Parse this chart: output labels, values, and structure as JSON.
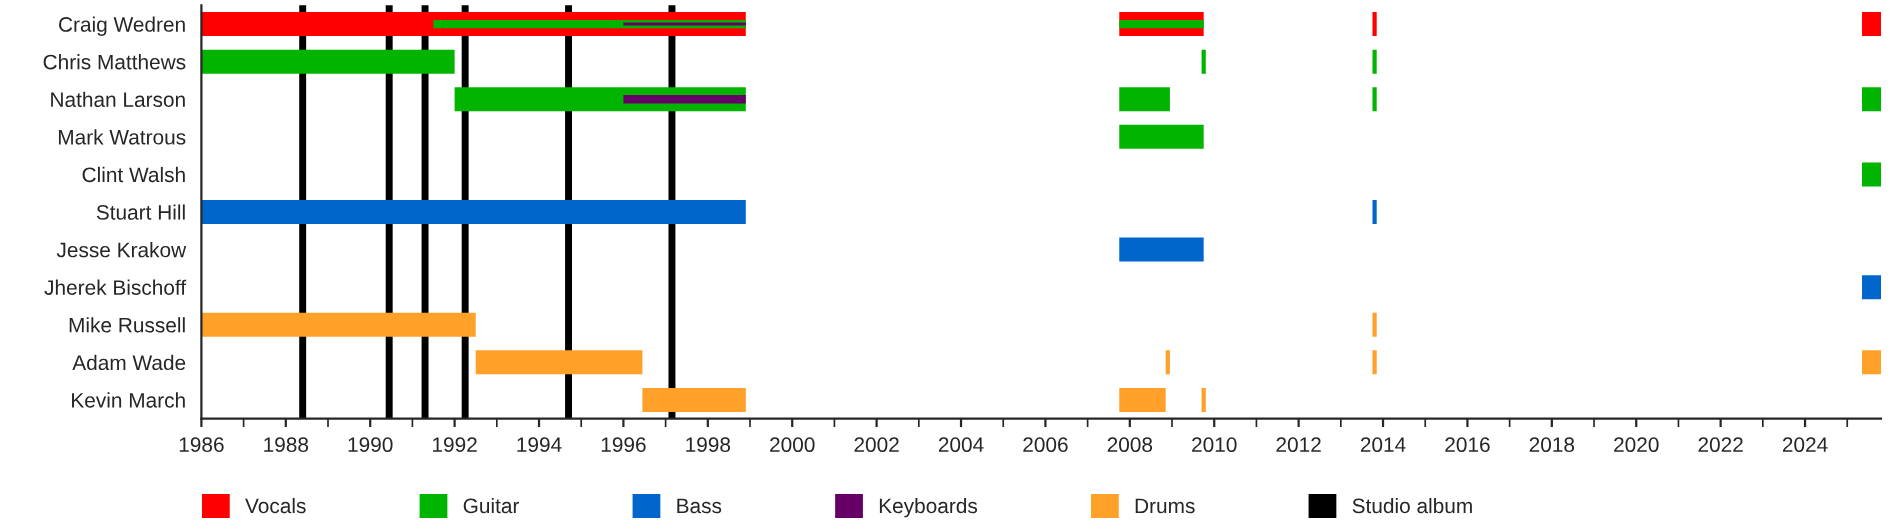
{
  "chart_data": {
    "type": "bar",
    "orientation": "horizontal",
    "legend": "bottom",
    "grid": false,
    "categories": [
      "Craig Wedren",
      "Chris Matthews",
      "Nathan Larson",
      "Mark Watrous",
      "Clint Walsh",
      "Stuart Hill",
      "Jesse Krakow",
      "Jherek Bischoff",
      "Mike Russell",
      "Adam Wade",
      "Kevin March"
    ],
    "xlim": [
      1986,
      2025.8
    ],
    "xticks": [
      1986,
      1988,
      1990,
      1992,
      1994,
      1996,
      1998,
      2000,
      2002,
      2004,
      2006,
      2008,
      2010,
      2012,
      2014,
      2016,
      2018,
      2020,
      2022,
      2024
    ],
    "series": [
      {
        "name": "Vocals",
        "color": "#ff0000",
        "base": [
          1986,
          null,
          null,
          null,
          null,
          null,
          null,
          null,
          null,
          null,
          null
        ],
        "values": [
          12.9,
          null,
          null,
          null,
          null,
          null,
          null,
          null,
          null,
          null,
          null
        ]
      },
      {
        "color": "#ff0000",
        "base": [
          2007.75,
          null,
          null,
          null,
          null,
          null,
          null,
          null,
          null,
          null,
          null
        ],
        "values": [
          2.0,
          null,
          null,
          null,
          null,
          null,
          null,
          null,
          null,
          null,
          null
        ]
      },
      {
        "color": "#ff0000",
        "base": [
          2013.75,
          null,
          null,
          null,
          null,
          null,
          null,
          null,
          null,
          null,
          null
        ],
        "values": [
          0.1,
          null,
          null,
          null,
          null,
          null,
          null,
          null,
          null,
          null,
          null
        ]
      },
      {
        "color": "#ff0000",
        "base": [
          2025.35,
          null,
          null,
          null,
          null,
          null,
          null,
          null,
          null,
          null,
          null
        ],
        "values": [
          0.45,
          null,
          null,
          null,
          null,
          null,
          null,
          null,
          null,
          null,
          null
        ]
      },
      {
        "name": "Guitar",
        "color": "#00b400",
        "base": [
          1991.5,
          1986,
          1992,
          null,
          null,
          null,
          null,
          null,
          null,
          null,
          null
        ],
        "values": [
          7.4,
          6.0,
          6.9,
          null,
          null,
          null,
          null,
          null,
          null,
          null,
          null
        ]
      },
      {
        "color": "#00b400",
        "base": [
          2007.75,
          null,
          2007.75,
          2007.75,
          null,
          null,
          null,
          null,
          null,
          null,
          null
        ],
        "values": [
          2.0,
          null,
          1.2,
          2.0,
          null,
          null,
          null,
          null,
          null,
          null,
          null
        ]
      },
      {
        "color": "#00b400",
        "base": [
          null,
          2009.7,
          null,
          null,
          null,
          null,
          null,
          null,
          null,
          null,
          null
        ],
        "values": [
          null,
          0.1,
          null,
          null,
          null,
          null,
          null,
          null,
          null,
          null,
          null
        ]
      },
      {
        "color": "#00b400",
        "base": [
          null,
          2013.75,
          2013.75,
          null,
          null,
          null,
          null,
          null,
          null,
          null,
          null
        ],
        "values": [
          null,
          0.1,
          0.1,
          null,
          null,
          null,
          null,
          null,
          null,
          null,
          null
        ]
      },
      {
        "color": "#00b400",
        "base": [
          null,
          null,
          2025.35,
          null,
          2025.35,
          null,
          null,
          null,
          null,
          null,
          null
        ],
        "values": [
          null,
          null,
          0.45,
          null,
          0.45,
          null,
          null,
          null,
          null,
          null,
          null
        ]
      },
      {
        "name": "Bass",
        "color": "#0066cc",
        "base": [
          null,
          null,
          null,
          null,
          null,
          1986,
          null,
          null,
          null,
          null,
          null
        ],
        "values": [
          null,
          null,
          null,
          null,
          null,
          12.9,
          null,
          null,
          null,
          null,
          null
        ]
      },
      {
        "color": "#0066cc",
        "base": [
          null,
          null,
          null,
          null,
          null,
          null,
          2007.75,
          null,
          null,
          null,
          null
        ],
        "values": [
          null,
          null,
          null,
          null,
          null,
          null,
          2.0,
          null,
          null,
          null,
          null
        ]
      },
      {
        "color": "#0066cc",
        "base": [
          null,
          null,
          null,
          null,
          null,
          2013.75,
          null,
          null,
          null,
          null,
          null
        ],
        "values": [
          null,
          null,
          null,
          null,
          null,
          0.1,
          null,
          null,
          null,
          null,
          null
        ]
      },
      {
        "color": "#0066cc",
        "base": [
          null,
          null,
          null,
          null,
          null,
          null,
          null,
          2025.35,
          null,
          null,
          null
        ],
        "values": [
          null,
          null,
          null,
          null,
          null,
          null,
          null,
          0.45,
          null,
          null,
          null
        ]
      },
      {
        "name": "Keyboards",
        "color": "#660066",
        "base": [
          1996,
          null,
          1996,
          null,
          null,
          null,
          null,
          null,
          null,
          null,
          null
        ],
        "values": [
          2.9,
          null,
          2.9,
          null,
          null,
          null,
          null,
          null,
          null,
          null,
          null
        ]
      },
      {
        "name": "Drums",
        "color": "#ffa028",
        "base": [
          null,
          null,
          null,
          null,
          null,
          null,
          null,
          null,
          1986,
          1992.5,
          1996.45
        ],
        "values": [
          null,
          null,
          null,
          null,
          null,
          null,
          null,
          null,
          6.5,
          3.95,
          2.45
        ]
      },
      {
        "color": "#ffa028",
        "base": [
          null,
          null,
          null,
          null,
          null,
          null,
          null,
          null,
          null,
          2008.85,
          2007.75
        ],
        "values": [
          null,
          null,
          null,
          null,
          null,
          null,
          null,
          null,
          null,
          0.1,
          1.1
        ]
      },
      {
        "color": "#ffa028",
        "base": [
          null,
          null,
          null,
          null,
          null,
          null,
          null,
          null,
          2013.75,
          2013.75,
          2009.7
        ],
        "values": [
          null,
          null,
          null,
          null,
          null,
          null,
          null,
          null,
          0.1,
          0.1,
          0.1
        ]
      },
      {
        "color": "#ffa028",
        "base": [
          null,
          null,
          null,
          null,
          null,
          null,
          null,
          null,
          null,
          2025.35,
          null
        ],
        "values": [
          null,
          null,
          null,
          null,
          null,
          null,
          null,
          null,
          null,
          0.45,
          null
        ]
      }
    ],
    "ref_lines": [
      {
        "axis": "x",
        "value": 1988.4,
        "label": "Studio album",
        "color": "#000000"
      },
      {
        "axis": "x",
        "value": 1990.45,
        "color": "#000000"
      },
      {
        "axis": "x",
        "value": 1991.3,
        "color": "#000000"
      },
      {
        "axis": "x",
        "value": 1992.25,
        "color": "#000000"
      },
      {
        "axis": "x",
        "value": 1994.7,
        "color": "#000000"
      },
      {
        "axis": "x",
        "value": 1997.15,
        "color": "#000000"
      }
    ]
  }
}
